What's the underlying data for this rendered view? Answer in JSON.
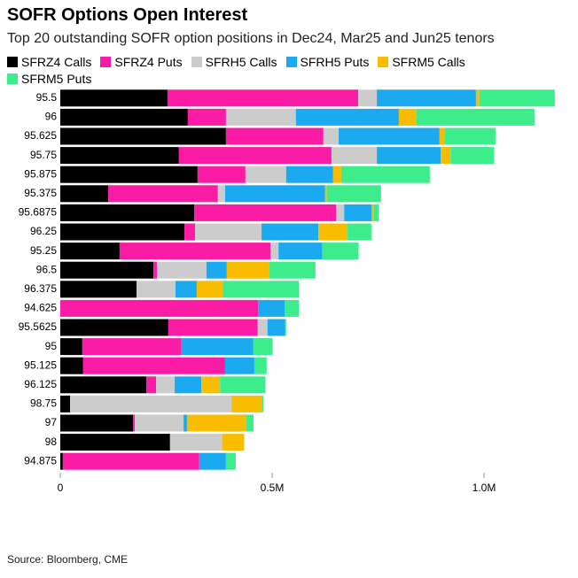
{
  "chart_data": {
    "type": "stacked-bar-horizontal",
    "title": "SOFR Options Open Interest",
    "subtitle": "Top 20 outstanding SOFR option positions in Dec24, Mar25 and Jun25 tenors",
    "source": "Source: Bloomberg, CME",
    "categories": [
      "95.5",
      "96",
      "95.625",
      "95.75",
      "95.875",
      "95.375",
      "95.6875",
      "96.25",
      "95.25",
      "96.5",
      "96.375",
      "94.625",
      "95.5625",
      "95",
      "95.125",
      "96.125",
      "98.75",
      "97",
      "98",
      "94.875"
    ],
    "series": [
      {
        "name": "SFRZ4 Calls",
        "color": "#000000",
        "values": [
          253000,
          301000,
          391000,
          280000,
          324000,
          113000,
          316000,
          293000,
          140000,
          220000,
          180000,
          0,
          255000,
          52000,
          54000,
          203000,
          23000,
          172000,
          259000,
          6000
        ]
      },
      {
        "name": "SFRZ4 Puts",
        "color": "#fb1ca5",
        "values": [
          450000,
          90000,
          230000,
          360000,
          113000,
          259000,
          335000,
          25000,
          356000,
          8000,
          0,
          467000,
          211000,
          234000,
          335000,
          23000,
          0,
          4000,
          0,
          322000
        ]
      },
      {
        "name": "SFRH5 Calls",
        "color": "#cccccc",
        "values": [
          44000,
          165000,
          36000,
          107000,
          96000,
          17000,
          19000,
          157000,
          19000,
          117000,
          92000,
          0,
          23000,
          0,
          0,
          44000,
          381000,
          115000,
          123000,
          0
        ]
      },
      {
        "name": "SFRH5 Puts",
        "color": "#1ba9f0",
        "values": [
          234000,
          243000,
          238000,
          151000,
          111000,
          236000,
          65000,
          134000,
          103000,
          48000,
          50000,
          63000,
          42000,
          169000,
          69000,
          63000,
          0,
          8000,
          0,
          63000
        ]
      },
      {
        "name": "SFRM5 Calls",
        "color": "#f8bd00",
        "values": [
          8000,
          42000,
          13000,
          23000,
          19000,
          4000,
          4000,
          69000,
          0,
          100000,
          61000,
          0,
          0,
          0,
          0,
          44000,
          73000,
          140000,
          52000,
          0
        ]
      },
      {
        "name": "SFRM5 Puts",
        "color": "#3ded8b",
        "values": [
          178000,
          278000,
          119000,
          103000,
          209000,
          128000,
          13000,
          56000,
          86000,
          109000,
          180000,
          33000,
          2000,
          46000,
          29000,
          107000,
          2000,
          17000,
          0,
          23000
        ]
      }
    ],
    "xlim": [
      0,
      1200000
    ],
    "xticks": [
      0,
      {
        "value": 500000,
        "label": "0.5M"
      },
      {
        "value": 1000000,
        "label": "1.0M"
      }
    ]
  }
}
